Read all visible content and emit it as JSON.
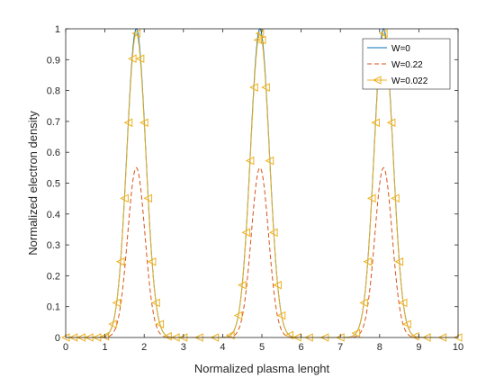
{
  "chart_data": {
    "type": "line",
    "title": "",
    "xlabel": "Normalized plasma lenght",
    "ylabel": "Normalized electron density",
    "xlim": [
      0,
      10
    ],
    "ylim": [
      0,
      1
    ],
    "xticks": [
      "0",
      "1",
      "2",
      "3",
      "4",
      "5",
      "6",
      "7",
      "8",
      "9",
      "10"
    ],
    "yticks": [
      "0",
      "0.1",
      "0.2",
      "0.3",
      "0.4",
      "0.5",
      "0.6",
      "0.7",
      "0.8",
      "0.9",
      "1"
    ],
    "grid": false,
    "legend_position": "top-right",
    "peaks": [
      1.8,
      4.95,
      8.1
    ],
    "series": [
      {
        "name": "W=0",
        "style": "solid",
        "color": "#0072BD",
        "peak": 1.0,
        "sigma": 0.24
      },
      {
        "name": "W=0.22",
        "style": "dashed",
        "color": "#D95319",
        "peak": 0.55,
        "sigma": 0.22
      },
      {
        "name": "W=0.022",
        "style": "solid-triangle-markers",
        "color": "#EDB120",
        "peak": 0.985,
        "sigma": 0.24
      }
    ],
    "x": [
      0,
      0.2,
      0.4,
      0.6,
      0.8,
      1.0,
      1.2,
      1.3,
      1.4,
      1.5,
      1.6,
      1.7,
      1.8,
      1.9,
      2.0,
      2.1,
      2.2,
      2.3,
      2.4,
      2.6,
      2.8,
      3.0,
      3.4,
      3.8,
      4.2,
      4.4,
      4.5,
      4.6,
      4.7,
      4.8,
      4.9,
      4.95,
      5.0,
      5.1,
      5.2,
      5.3,
      5.4,
      5.5,
      5.7,
      5.9,
      6.2,
      6.6,
      7.0,
      7.4,
      7.6,
      7.7,
      7.8,
      7.9,
      8.0,
      8.1,
      8.2,
      8.3,
      8.4,
      8.5,
      8.6,
      8.7,
      8.9,
      9.2,
      9.6,
      10.0
    ]
  }
}
